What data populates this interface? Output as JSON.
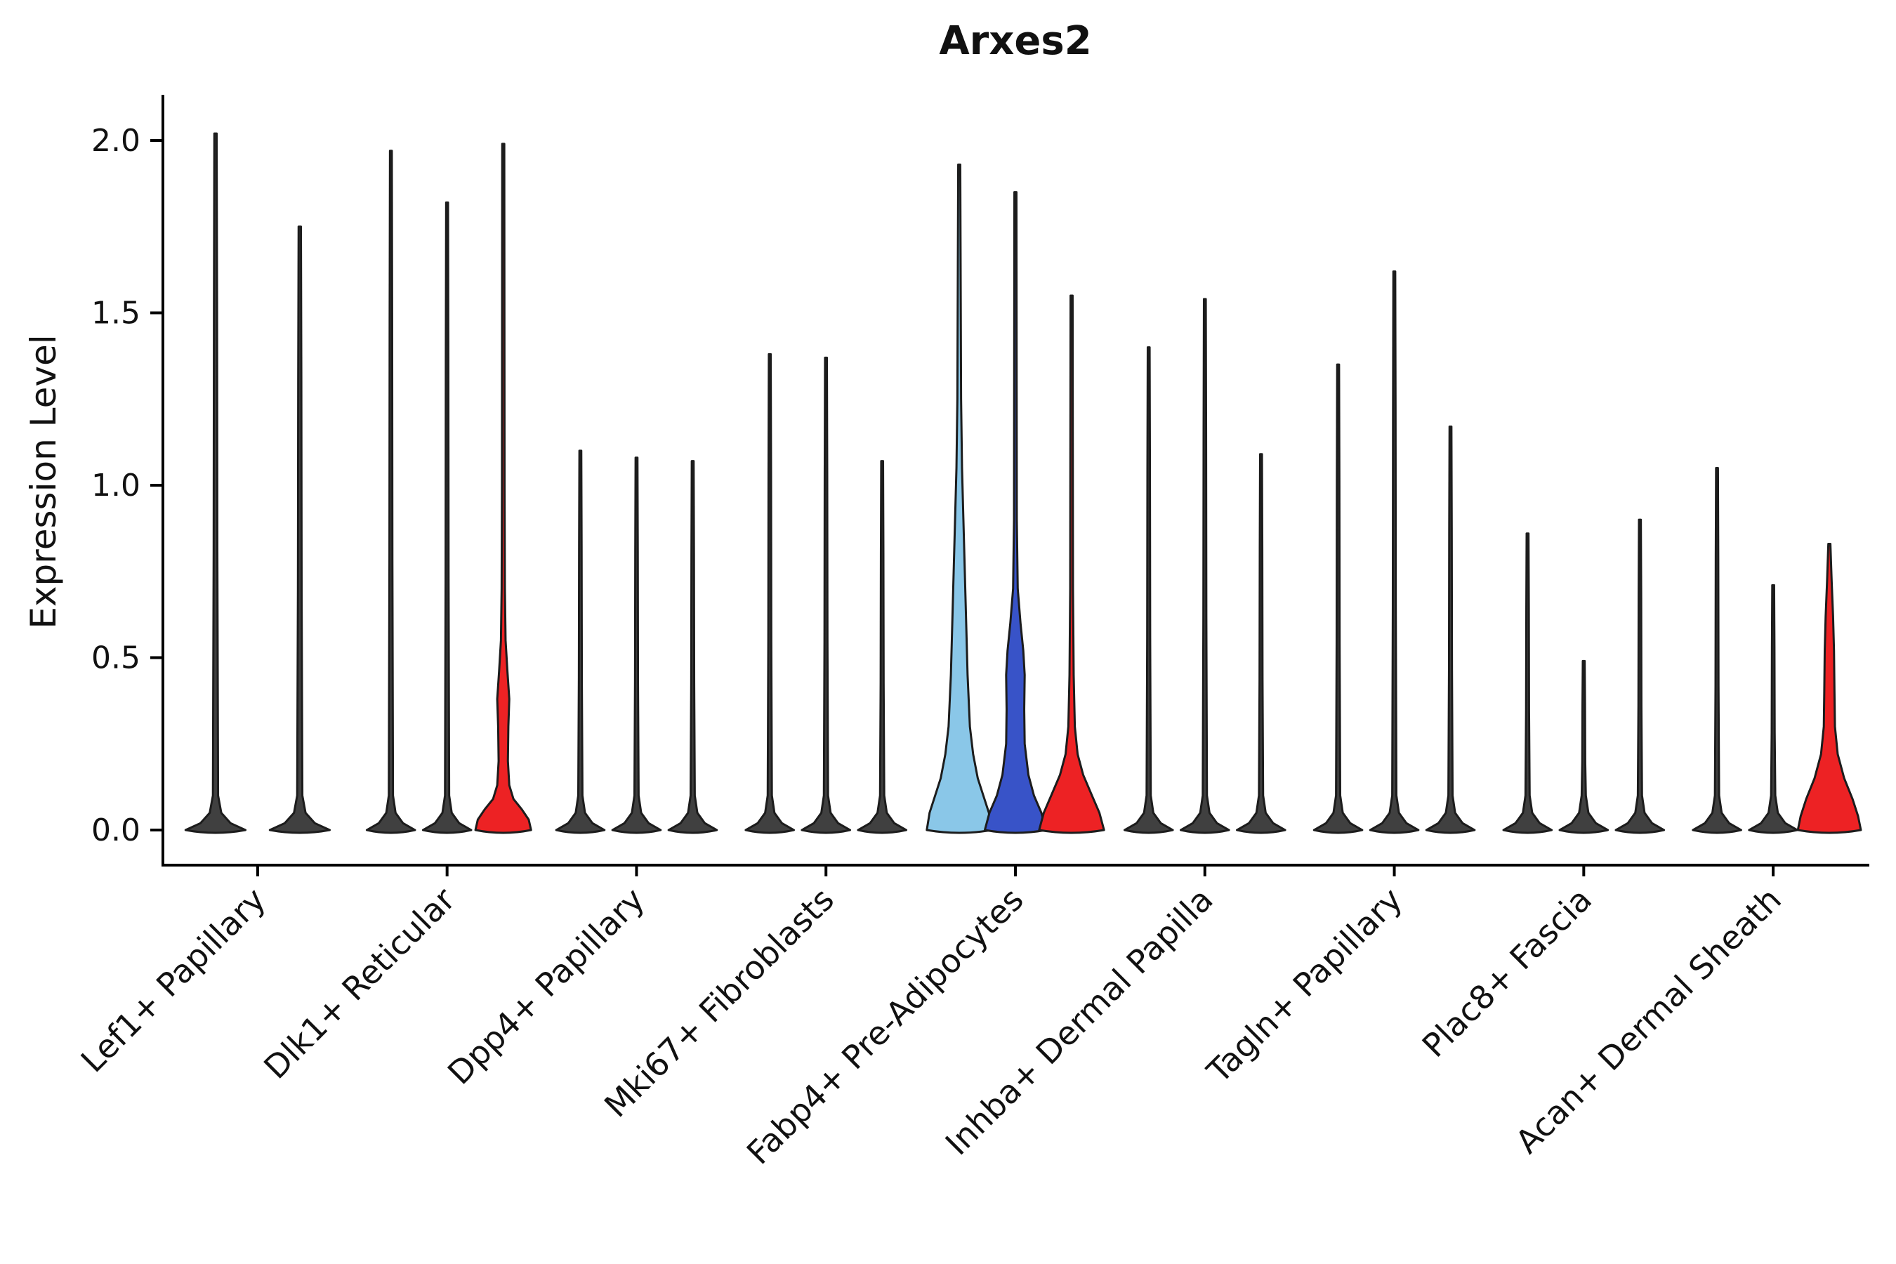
{
  "chart_data": {
    "type": "violin",
    "title": "Arxes2",
    "ylabel": "Expression Level",
    "xlabel": "",
    "ylim": [
      0,
      2.05
    ],
    "yticks": [
      0.0,
      0.5,
      1.0,
      1.5,
      2.0
    ],
    "grid": false,
    "legend": "none",
    "styles": {
      "default_fill": "#404040",
      "stroke": "#1c1c1c",
      "red": "#ED2224",
      "light_blue": "#8AC7E8",
      "dark_blue": "#3853C8"
    },
    "categories": [
      "Lef1+ Papillary",
      "Dlk1+ Reticular",
      "Dpp4+ Papillary",
      "Mki67+ Fibroblasts",
      "Fabp4+ Pre-Adipocytes",
      "Inhba+ Dermal Papilla",
      "Tagln+ Papillary",
      "Plac8+ Fascia",
      "Acan+ Dermal Sheath"
    ],
    "groups": [
      {
        "category": "Lef1+ Papillary",
        "violins": [
          {
            "max": 2.02,
            "shape": "thin"
          },
          {
            "max": 1.75,
            "shape": "thin"
          }
        ]
      },
      {
        "category": "Dlk1+ Reticular",
        "violins": [
          {
            "max": 1.97,
            "shape": "thin"
          },
          {
            "max": 1.82,
            "shape": "thin"
          },
          {
            "max": 1.99,
            "shape": "custom",
            "color": "#ED2224",
            "profile": [
              [
                0,
                0.6
              ],
              [
                0.03,
                0.55
              ],
              [
                0.06,
                0.4
              ],
              [
                0.09,
                0.22
              ],
              [
                0.13,
                0.13
              ],
              [
                0.2,
                0.1
              ],
              [
                0.3,
                0.11
              ],
              [
                0.38,
                0.13
              ],
              [
                0.46,
                0.09
              ],
              [
                0.55,
                0.05
              ],
              [
                0.7,
                0.035
              ],
              [
                1.0,
                0.028
              ],
              [
                1.99,
                0.022
              ]
            ]
          }
        ]
      },
      {
        "category": "Dpp4+ Papillary",
        "violins": [
          {
            "max": 1.1,
            "shape": "thin"
          },
          {
            "max": 1.08,
            "shape": "thin"
          },
          {
            "max": 1.07,
            "shape": "thin"
          }
        ]
      },
      {
        "category": "Mki67+ Fibroblasts",
        "violins": [
          {
            "max": 1.38,
            "shape": "thin"
          },
          {
            "max": 1.37,
            "shape": "thin"
          },
          {
            "max": 1.07,
            "shape": "thin"
          }
        ]
      },
      {
        "category": "Fabp4+ Pre-Adipocytes",
        "violins": [
          {
            "max": 1.93,
            "shape": "custom",
            "color": "#8AC7E8",
            "profile": [
              [
                0,
                0.7
              ],
              [
                0.05,
                0.64
              ],
              [
                0.1,
                0.52
              ],
              [
                0.15,
                0.4
              ],
              [
                0.22,
                0.3
              ],
              [
                0.3,
                0.23
              ],
              [
                0.45,
                0.18
              ],
              [
                0.6,
                0.15
              ],
              [
                0.75,
                0.12
              ],
              [
                0.9,
                0.09
              ],
              [
                1.05,
                0.06
              ],
              [
                1.25,
                0.04
              ],
              [
                1.93,
                0.022
              ]
            ]
          },
          {
            "max": 1.85,
            "shape": "custom",
            "color": "#3853C8",
            "profile": [
              [
                0,
                0.66
              ],
              [
                0.05,
                0.56
              ],
              [
                0.1,
                0.4
              ],
              [
                0.16,
                0.28
              ],
              [
                0.25,
                0.2
              ],
              [
                0.35,
                0.19
              ],
              [
                0.45,
                0.2
              ],
              [
                0.52,
                0.17
              ],
              [
                0.6,
                0.11
              ],
              [
                0.7,
                0.05
              ],
              [
                0.9,
                0.03
              ],
              [
                1.85,
                0.022
              ]
            ]
          },
          {
            "max": 1.55,
            "shape": "custom",
            "color": "#ED2224",
            "profile": [
              [
                0,
                0.7
              ],
              [
                0.05,
                0.6
              ],
              [
                0.1,
                0.44
              ],
              [
                0.16,
                0.25
              ],
              [
                0.22,
                0.13
              ],
              [
                0.3,
                0.07
              ],
              [
                0.45,
                0.045
              ],
              [
                0.7,
                0.03
              ],
              [
                1.55,
                0.022
              ]
            ]
          }
        ]
      },
      {
        "category": "Inhba+ Dermal Papilla",
        "violins": [
          {
            "max": 1.4,
            "shape": "thin"
          },
          {
            "max": 1.54,
            "shape": "thin"
          },
          {
            "max": 1.09,
            "shape": "thin"
          }
        ]
      },
      {
        "category": "Tagln+ Papillary",
        "violins": [
          {
            "max": 1.35,
            "shape": "thin"
          },
          {
            "max": 1.62,
            "shape": "thin"
          },
          {
            "max": 1.17,
            "shape": "thin"
          }
        ]
      },
      {
        "category": "Plac8+ Fascia",
        "violins": [
          {
            "max": 0.86,
            "shape": "thin"
          },
          {
            "max": 0.49,
            "shape": "thin"
          },
          {
            "max": 0.9,
            "shape": "thin"
          }
        ]
      },
      {
        "category": "Acan+ Dermal Sheath",
        "violins": [
          {
            "max": 1.05,
            "shape": "thin"
          },
          {
            "max": 0.71,
            "shape": "thin"
          },
          {
            "max": 0.83,
            "shape": "custom",
            "color": "#ED2224",
            "profile": [
              [
                0,
                0.68
              ],
              [
                0.04,
                0.62
              ],
              [
                0.09,
                0.5
              ],
              [
                0.15,
                0.32
              ],
              [
                0.22,
                0.18
              ],
              [
                0.3,
                0.12
              ],
              [
                0.4,
                0.11
              ],
              [
                0.52,
                0.1
              ],
              [
                0.62,
                0.08
              ],
              [
                0.72,
                0.05
              ],
              [
                0.83,
                0.022
              ]
            ]
          }
        ]
      }
    ]
  }
}
